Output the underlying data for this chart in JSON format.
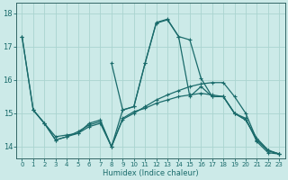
{
  "xlabel": "Humidex (Indice chaleur)",
  "bg_color": "#cceae8",
  "grid_color": "#aad4d0",
  "line_color": "#1a6b6b",
  "spine_color": "#336666",
  "xlim": [
    -0.5,
    23.5
  ],
  "ylim": [
    13.65,
    18.3
  ],
  "yticks": [
    14,
    15,
    16,
    17,
    18
  ],
  "xticks": [
    0,
    1,
    2,
    3,
    4,
    5,
    6,
    7,
    8,
    9,
    10,
    11,
    12,
    13,
    14,
    15,
    16,
    17,
    18,
    19,
    20,
    21,
    22,
    23
  ],
  "lines": [
    {
      "x": [
        0,
        1,
        2,
        3,
        4,
        5,
        6,
        7,
        8,
        9,
        10,
        11,
        12,
        13,
        14,
        15,
        16,
        17,
        18,
        19,
        20,
        21,
        22,
        23
      ],
      "y": [
        17.3,
        15.1,
        14.7,
        14.3,
        14.35,
        14.4,
        14.7,
        14.8,
        14.0,
        15.1,
        15.2,
        16.5,
        17.7,
        17.8,
        17.3,
        17.2,
        16.05,
        15.5,
        15.5,
        15.0,
        14.85,
        14.15,
        13.82,
        13.78
      ]
    },
    {
      "x": [
        8,
        9,
        10,
        11,
        12,
        13,
        14,
        15,
        16,
        17,
        18,
        19,
        20,
        21,
        22,
        23
      ],
      "y": [
        16.5,
        15.1,
        15.2,
        16.5,
        17.72,
        17.82,
        17.3,
        15.5,
        15.8,
        15.5,
        15.5,
        15.0,
        14.8,
        14.2,
        13.88,
        13.78
      ]
    },
    {
      "x": [
        1,
        2,
        3,
        4,
        5,
        6,
        7,
        8,
        9,
        10,
        11,
        12,
        13,
        14,
        15,
        16,
        17,
        18,
        19,
        20,
        21,
        22,
        23
      ],
      "y": [
        15.1,
        14.7,
        14.2,
        14.3,
        14.4,
        14.6,
        14.7,
        14.0,
        14.85,
        15.05,
        15.15,
        15.3,
        15.4,
        15.5,
        15.55,
        15.6,
        15.55,
        15.5,
        15.0,
        14.8,
        14.25,
        13.9,
        13.78
      ]
    },
    {
      "x": [
        0,
        1,
        2,
        3,
        4,
        5,
        6,
        7,
        8,
        9,
        10,
        11,
        12,
        13,
        14,
        15,
        16,
        17,
        18,
        19,
        20,
        21,
        22,
        23
      ],
      "y": [
        17.3,
        15.1,
        14.7,
        14.2,
        14.3,
        14.45,
        14.65,
        14.75,
        14.0,
        14.82,
        15.0,
        15.2,
        15.4,
        15.55,
        15.68,
        15.8,
        15.88,
        15.92,
        15.92,
        15.5,
        15.0,
        14.2,
        13.88,
        13.78
      ]
    }
  ]
}
